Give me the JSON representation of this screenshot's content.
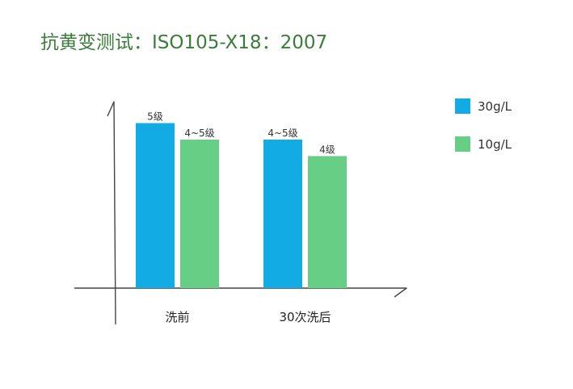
{
  "colors": {
    "title": "#3a7d3a",
    "axis": "#444444",
    "series_1": "#12abe4",
    "series_2": "#66cf85"
  },
  "chart_data": {
    "type": "bar",
    "title": "抗黄变测试：ISO105-X18：2007",
    "xlabel": "",
    "ylabel": "",
    "categories": [
      "洗前",
      "30次洗后"
    ],
    "ylim": [
      0,
      5.6
    ],
    "grid": false,
    "legend_position": "right",
    "series": [
      {
        "name": "30g/L",
        "values": [
          5,
          4.5
        ],
        "labels": [
          "5级",
          "4~5级"
        ]
      },
      {
        "name": "10g/L",
        "values": [
          4.5,
          4
        ],
        "labels": [
          "4~5级",
          "4级"
        ]
      }
    ]
  }
}
